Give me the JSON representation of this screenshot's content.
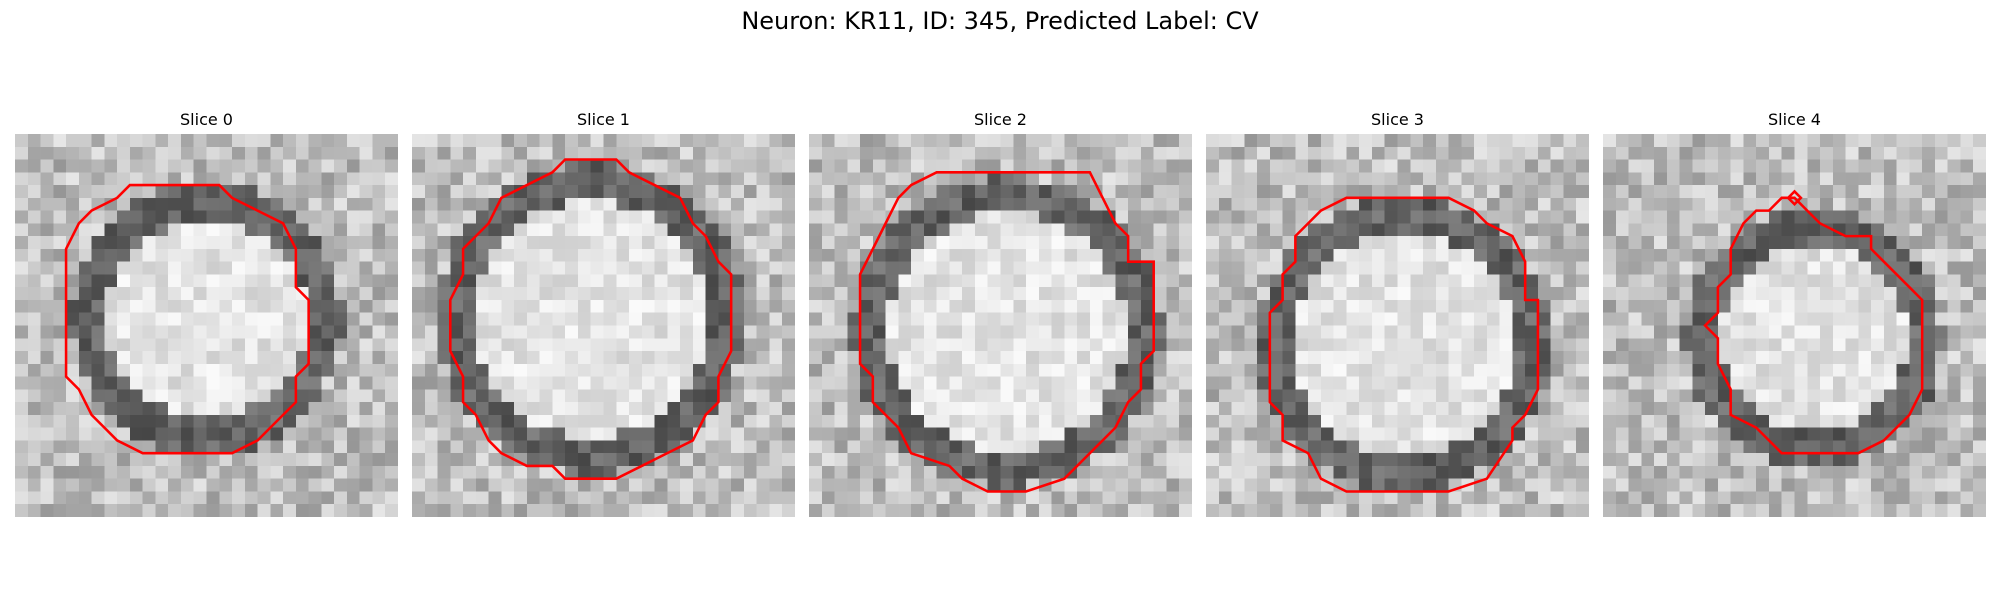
{
  "figure": {
    "title": "Neuron: KR11, ID: 345, Predicted Label: CV",
    "contour_color": "#ff0000"
  },
  "slices": [
    {
      "title": "Slice 0"
    },
    {
      "title": "Slice 1"
    },
    {
      "title": "Slice 2"
    },
    {
      "title": "Slice 3"
    },
    {
      "title": "Slice 4"
    }
  ]
}
